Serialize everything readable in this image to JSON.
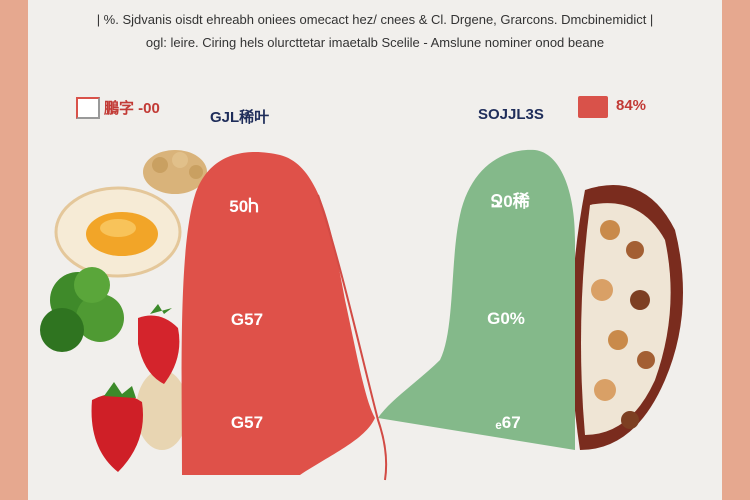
{
  "title": "",
  "subtitle_line1": "| %. Sjdvanis oisdt ehreabh oniees omecact hez/ cnees & Cl. Drgene, Grarcons. Dmcbinemidict |",
  "subtitle_line2": "ogl: leire. Ciring hels olurcttetar imaetalb Scelile - Amslune nominer onod beane",
  "legend": {
    "left_label": "鵬字 -00",
    "left_color": "#d9524a",
    "right_label": "84%",
    "right_color": "#d9524a"
  },
  "chart_data": {
    "type": "area",
    "series": [
      {
        "name": "GJL稀叶",
        "color": "#df5149",
        "labels": [
          "50Ⴙ",
          "G57",
          "G57"
        ]
      },
      {
        "name": "SOJJL3S",
        "color": "#84b98a",
        "labels": [
          "Ջ0稀",
          "G0%",
          "ₑ67"
        ]
      }
    ]
  },
  "colors": {
    "background": "#e6a88f",
    "card": "#f1efec",
    "axis_line": "#d24b45"
  },
  "decorations": [
    "fried-egg",
    "broccoli",
    "strawberry",
    "nuts-and-grains",
    "granola-bowl"
  ]
}
